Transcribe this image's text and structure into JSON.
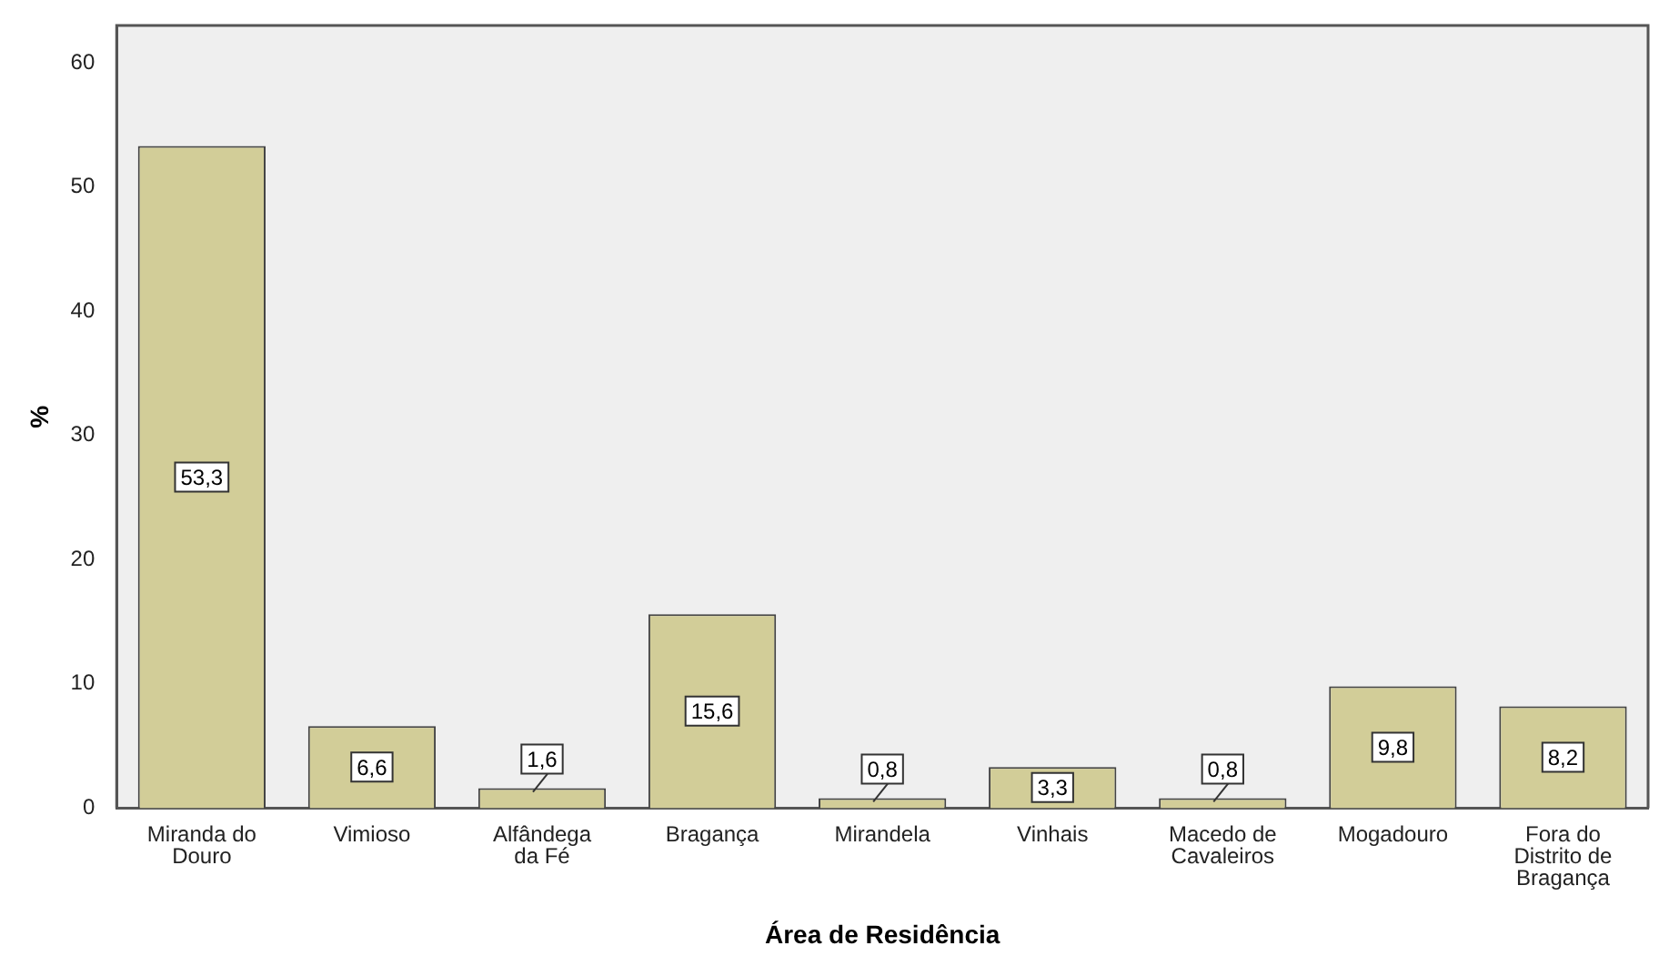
{
  "chart_data": {
    "type": "bar",
    "xlabel": "Área de Residência",
    "ylabel": "%",
    "categories": [
      "Miranda do Douro",
      "Vimioso",
      "Alfândega da Fé",
      "Bragança",
      "Mirandela",
      "Vinhais",
      "Macedo de Cavaleiros",
      "Mogadouro",
      "Fora do Distrito de Bragança"
    ],
    "values": [
      53.3,
      6.6,
      1.6,
      15.6,
      0.8,
      3.3,
      0.8,
      9.8,
      8.2
    ],
    "value_labels": [
      "53,3",
      "6,6",
      "1,6",
      "15,6",
      "0,8",
      "3,3",
      "0,8",
      "9,8",
      "8,2"
    ],
    "color": "#d2cd98",
    "ylim": [
      0,
      63
    ],
    "yticks": [
      0,
      10,
      20,
      30,
      40,
      50,
      60
    ],
    "grid": false,
    "legend": false
  }
}
